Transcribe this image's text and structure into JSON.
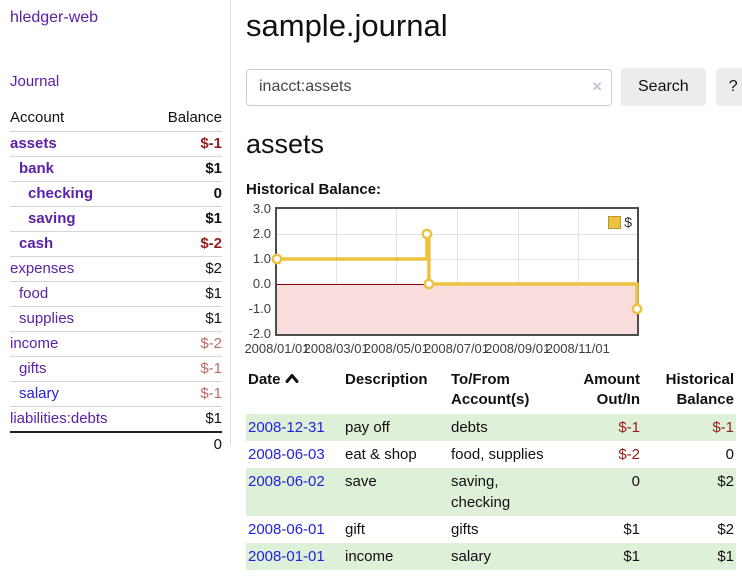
{
  "colors": {
    "link_purple": "#5b21a6",
    "link_blue": "#2222dd",
    "negative_strong": "#961c1c",
    "negative_muted": "#c06868",
    "row_stripe_green": "#dff0d8",
    "chart_line_gold": "#edc240",
    "chart_negative_region": "#f9dcdc",
    "chart_zero_line": "#8b0000"
  },
  "sidebar": {
    "app_title": "hledger-web",
    "journal_link": "Journal",
    "accounts": {
      "header_account": "Account",
      "header_balance": "Balance",
      "rows": [
        {
          "name": "assets",
          "depth": 0,
          "bold": true,
          "balance": "$-1",
          "balance_style": "neg-strong",
          "link_style": "purple"
        },
        {
          "name": "bank",
          "depth": 1,
          "bold": true,
          "balance": "$1",
          "balance_style": "pos",
          "link_style": "purple"
        },
        {
          "name": "checking",
          "depth": 2,
          "bold": true,
          "balance": "0",
          "balance_style": "pos",
          "link_style": "purple"
        },
        {
          "name": "saving",
          "depth": 2,
          "bold": true,
          "balance": "$1",
          "balance_style": "pos",
          "link_style": "purple"
        },
        {
          "name": "cash",
          "depth": 1,
          "bold": true,
          "balance": "$-2",
          "balance_style": "neg-strong",
          "link_style": "purple"
        },
        {
          "name": "expenses",
          "depth": 0,
          "bold": false,
          "balance": "$2",
          "balance_style": "pos",
          "link_style": "purple"
        },
        {
          "name": "food",
          "depth": 1,
          "bold": false,
          "balance": "$1",
          "balance_style": "pos",
          "link_style": "purple"
        },
        {
          "name": "supplies",
          "depth": 1,
          "bold": false,
          "balance": "$1",
          "balance_style": "pos",
          "link_style": "purple"
        },
        {
          "name": "income",
          "depth": 0,
          "bold": false,
          "balance": "$-2",
          "balance_style": "neg-muted",
          "link_style": "purple"
        },
        {
          "name": "gifts",
          "depth": 1,
          "bold": false,
          "balance": "$-1",
          "balance_style": "neg-muted",
          "link_style": "purple"
        },
        {
          "name": "salary",
          "depth": 1,
          "bold": false,
          "balance": "$-1",
          "balance_style": "neg-muted",
          "link_style": "blue"
        },
        {
          "name": "liabilities:debts",
          "depth": 0,
          "bold": false,
          "balance": "$1",
          "balance_style": "pos",
          "link_style": "purple"
        }
      ],
      "total": "0"
    }
  },
  "main": {
    "page_title": "sample.journal",
    "search": {
      "value": "inacct:assets",
      "clear_icon": "×",
      "button": "Search",
      "help_button": "?"
    },
    "account_heading": "assets",
    "chart_heading": "Historical Balance:"
  },
  "chart_data": {
    "type": "line",
    "style": "step",
    "title": "Historical Balance:",
    "legend": {
      "label": "$",
      "position": "top-right"
    },
    "x_range": [
      "2008/01/01",
      "2008/12/31"
    ],
    "ylim": [
      -2.0,
      3.0
    ],
    "y_ticks": [
      "3.0",
      "2.0",
      "1.0",
      "0.0",
      "-1.0",
      "-2.0"
    ],
    "x_ticks": [
      "2008/01/01",
      "2008/03/01",
      "2008/05/01",
      "2008/07/01",
      "2008/09/01",
      "2008/11/01"
    ],
    "grid": true,
    "series": [
      {
        "name": "$",
        "points": [
          {
            "date": "2008/01/01",
            "value": 1.0
          },
          {
            "date": "2008/06/01",
            "value": 2.0
          },
          {
            "date": "2008/06/03",
            "value": 0.0
          },
          {
            "date": "2008/12/31",
            "value": -1.0
          }
        ]
      }
    ]
  },
  "transactions": {
    "headers": [
      {
        "lines": [
          "Date"
        ],
        "sortable": true,
        "align": "left"
      },
      {
        "lines": [
          "Description"
        ],
        "align": "left"
      },
      {
        "lines": [
          "To/From",
          "Account(s)"
        ],
        "align": "left"
      },
      {
        "lines": [
          "Amount",
          "Out/In"
        ],
        "align": "right"
      },
      {
        "lines": [
          "Historical",
          "Balance"
        ],
        "align": "right"
      }
    ],
    "rows": [
      {
        "date": "2008-12-31",
        "description": "pay off",
        "accounts": "debts",
        "amount": "$-1",
        "amount_neg": true,
        "balance": "$-1",
        "balance_neg": true,
        "striped": true
      },
      {
        "date": "2008-06-03",
        "description": "eat & shop",
        "accounts": "food, supplies",
        "amount": "$-2",
        "amount_neg": true,
        "balance": "0",
        "balance_neg": false,
        "striped": false
      },
      {
        "date": "2008-06-02",
        "description": "save",
        "accounts": "saving,\nchecking",
        "amount": "0",
        "amount_neg": false,
        "balance": "$2",
        "balance_neg": false,
        "striped": true
      },
      {
        "date": "2008-06-01",
        "description": "gift",
        "accounts": "gifts",
        "amount": "$1",
        "amount_neg": false,
        "balance": "$2",
        "balance_neg": false,
        "striped": false
      },
      {
        "date": "2008-01-01",
        "description": "income",
        "accounts": "salary",
        "amount": "$1",
        "amount_neg": false,
        "balance": "$1",
        "balance_neg": false,
        "striped": true
      }
    ]
  }
}
